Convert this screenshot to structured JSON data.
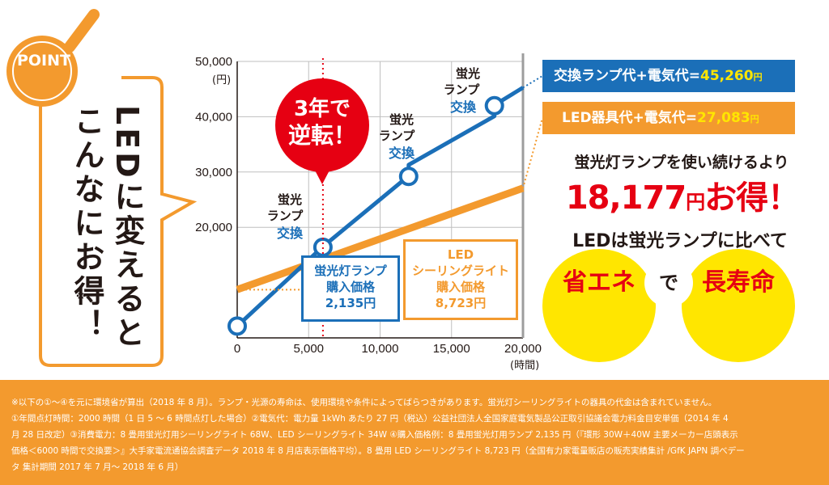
{
  "callout": {
    "point_label": "POINT",
    "headline_col1": "LEDに変えると",
    "headline_col2": "こんなにお得！",
    "note_mark": "※"
  },
  "axes": {
    "x_unit": "(時間)",
    "y_unit": "(円)"
  },
  "badge": {
    "line1": "3年で",
    "line2": "逆転！"
  },
  "annotations": [
    {
      "line1": "蛍光",
      "line2": "ランプ",
      "line3": "交換"
    },
    {
      "line1": "蛍光",
      "line2": "ランプ",
      "line3": "交換"
    },
    {
      "line1": "蛍光",
      "line2": "ランプ",
      "line3": "交換"
    }
  ],
  "price_boxes": {
    "fluorescent": {
      "line1": "蛍光灯ランプ",
      "line2": "購入価格",
      "line3": "2,135円"
    },
    "led": {
      "line1": "LED",
      "line2": "シーリングライト",
      "line3": "購入価格",
      "line4": "8,723円"
    }
  },
  "totals": {
    "fluorescent_label": "交換ランプ代+電気代=",
    "fluorescent_value": "45,260",
    "led_label": "LED器具代+電気代=",
    "led_value": "27,083",
    "yen": "円"
  },
  "saving": {
    "intro": "蛍光灯ランプを使い続けるより",
    "amount": "18,177",
    "yen": "円",
    "suffix": "お得！"
  },
  "benefits": {
    "compare": "LEDは蛍光ランプに比べて",
    "left": "省エネ",
    "middle": "で",
    "right": "長寿命"
  },
  "footer": {
    "line1": "※以下の①〜④を元に環境省が算出（2018 年 8 月）。ランプ・光源の寿命は、使用環境や条件によってばらつきがあります。蛍光灯シーリングライトの器具の代金は含まれていません。",
    "line2": "①年間点灯時間：2000 時間（1 日 5 〜 6 時間点灯した場合）②電気代：電力量 1kWh あたり 27 円（税込）公益社団法人全国家庭電気製品公正取引協議会電力料金目安単価（2014 年 4",
    "line3": "月 28 日改定）③消費電力：8 畳用蛍光灯用シーリングライト 68W、LED シーリングライト 34W ④購入価格例：8 畳用蛍光灯用ランプ 2,135 円（『環形 30W＋40W 主要メーカー店頭表示",
    "line4": "価格＜6000 時間で交換要＞』大手家電流通協会調査データ 2018 年 8 月店表示価格平均）。8 畳用 LED シーリングライト 8,723 円（全国有力家電量販店の販売実績集計 /GfK JAPN 調べデー",
    "line5": "タ 集計期間 2017 年 7 月〜 2018 年 6 月）"
  },
  "colors": {
    "orange": "#f39a2e",
    "blue": "#1b6fb8",
    "red": "#e60012",
    "yellow": "#ffe600"
  },
  "chart_data": {
    "type": "line",
    "xlabel": "(時間)",
    "ylabel": "(円)",
    "xlim": [
      0,
      20000
    ],
    "ylim": [
      0,
      50000
    ],
    "x_ticks": [
      0,
      5000,
      10000,
      15000,
      20000
    ],
    "x_tick_labels": [
      "0",
      "5,000",
      "10,000",
      "15,000",
      "20,000"
    ],
    "y_ticks": [
      20000,
      30000,
      40000,
      50000
    ],
    "y_tick_labels": [
      "20,000",
      "30,000",
      "40,000",
      "50,000"
    ],
    "series": [
      {
        "name": "fluorescent",
        "points": [
          [
            0,
            2135
          ],
          [
            6000,
            16500
          ],
          [
            12000,
            29300
          ],
          [
            12000,
            31300
          ],
          [
            18000,
            40100
          ],
          [
            18000,
            42100
          ],
          [
            20000,
            45260
          ]
        ]
      },
      {
        "name": "led",
        "points": [
          [
            0,
            8723
          ],
          [
            20000,
            27083
          ]
        ]
      }
    ],
    "markers": [
      [
        0,
        2135
      ],
      [
        6000,
        16400
      ],
      [
        12000,
        29200
      ],
      [
        18000,
        42000
      ]
    ],
    "crossover_x": 6000
  }
}
